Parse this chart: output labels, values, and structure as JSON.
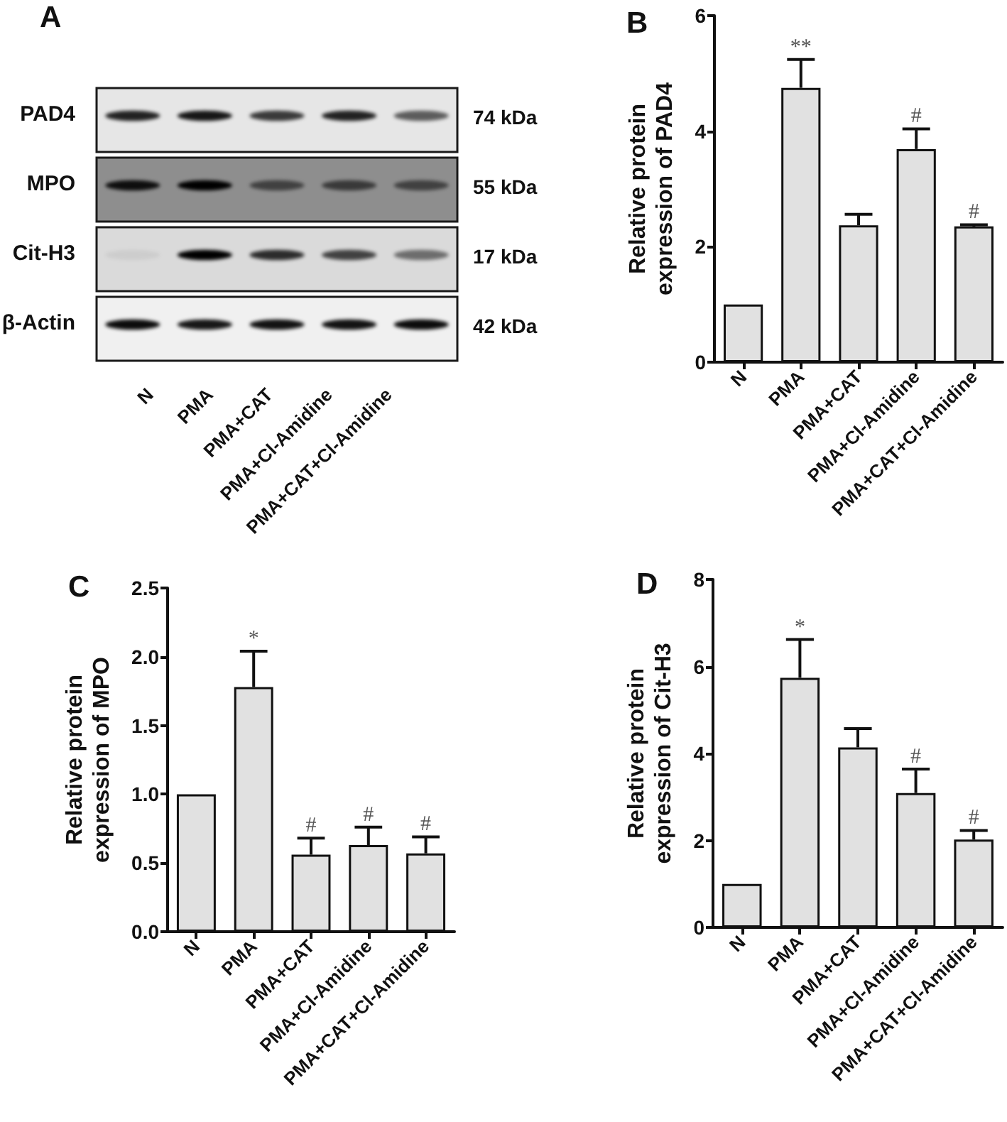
{
  "chart_data": [
    {
      "type": "other",
      "title": "A",
      "categories": [
        "N",
        "PMA",
        "PMA+CAT",
        "PMA+Cl-Amidine",
        "PMA+CAT+Cl-Amidine"
      ],
      "y_categories": [
        "PAD4",
        "MPO",
        "Cit-H3",
        "β-Actin"
      ],
      "y2_categories": [
        "74 kDa",
        "55 kDa",
        "17 kDa",
        "42 kDa"
      ]
    },
    {
      "type": "bar",
      "title": "B",
      "ylabel": "Relative protein expression of PAD4",
      "categories": [
        "N",
        "PMA",
        "PMA+CAT",
        "PMA+Cl-Amidine",
        "PMA+CAT+Cl-Amidine"
      ],
      "values": [
        1.0,
        4.75,
        2.37,
        3.69,
        2.35
      ],
      "errors": [
        null,
        0.49,
        0.19,
        0.35,
        0.03
      ],
      "color": "#e1e1e1",
      "ylim": [
        0,
        6
      ],
      "yticks": [
        0,
        2,
        4,
        6
      ],
      "annotations": [
        {
          "text": "**",
          "x": "PMA",
          "y": 5.24
        },
        {
          "text": "#",
          "x": "PMA+Cl-Amidine",
          "y": 4.04
        },
        {
          "text": "#",
          "x": "PMA+CAT+Cl-Amidine",
          "y": 2.38
        }
      ]
    },
    {
      "type": "bar",
      "title": "C",
      "ylabel": "Relative protein expression of MPO",
      "categories": [
        "N",
        "PMA",
        "PMA+CAT",
        "PMA+Cl-Amidine",
        "PMA+CAT+Cl-Amidine"
      ],
      "values": [
        1.0,
        1.78,
        0.56,
        0.63,
        0.57
      ],
      "errors": [
        null,
        0.26,
        0.12,
        0.13,
        0.12
      ],
      "color": "#e1e1e1",
      "ylim": [
        0,
        2.5
      ],
      "yticks": [
        {
          "value": 0,
          "label": "0.0"
        },
        0.5,
        {
          "value": 1,
          "label": "1.0"
        },
        1.5,
        {
          "value": 2,
          "label": "2.0"
        },
        2.5
      ],
      "annotations": [
        {
          "text": "*",
          "x": "PMA",
          "y": 2.04
        },
        {
          "text": "#",
          "x": "PMA+CAT",
          "y": 0.68
        },
        {
          "text": "#",
          "x": "PMA+Cl-Amidine",
          "y": 0.76
        },
        {
          "text": "#",
          "x": "PMA+CAT+Cl-Amidine",
          "y": 0.69
        }
      ]
    },
    {
      "type": "bar",
      "title": "D",
      "ylabel": "Relative protein expression of Cit-H3",
      "categories": [
        "N",
        "PMA",
        "PMA+CAT",
        "PMA+Cl-Amidine",
        "PMA+CAT+Cl-Amidine"
      ],
      "values": [
        1.0,
        5.74,
        4.14,
        3.09,
        2.02
      ],
      "errors": [
        null,
        0.88,
        0.43,
        0.55,
        0.21
      ],
      "color": "#e1e1e1",
      "ylim": [
        0,
        8
      ],
      "yticks": [
        0,
        2,
        4,
        6,
        8
      ],
      "annotations": [
        {
          "text": "*",
          "x": "PMA",
          "y": 6.62
        },
        {
          "text": "#",
          "x": "PMA+Cl-Amidine",
          "y": 3.64
        },
        {
          "text": "#",
          "x": "PMA+CAT+Cl-Amidine",
          "y": 2.23
        }
      ]
    }
  ]
}
